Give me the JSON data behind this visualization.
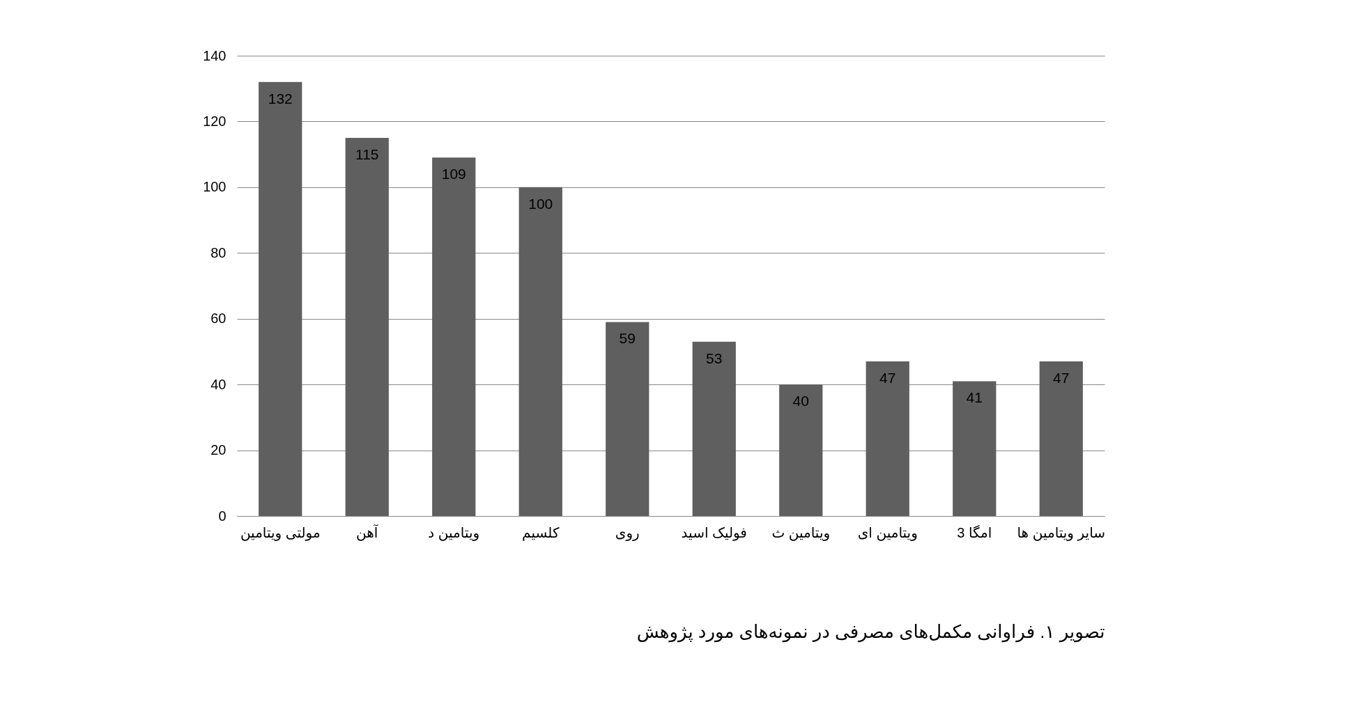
{
  "chart_data": {
    "type": "bar",
    "categories": [
      "مولتی ویتامین",
      "آهن",
      "ویتامین د",
      "کلسیم",
      "روی",
      "فولیک اسید",
      "ویتامین ث",
      "ویتامین ای",
      "امگا 3",
      "سایر ویتامین ها"
    ],
    "values": [
      132,
      115,
      109,
      100,
      59,
      53,
      40,
      47,
      41,
      47
    ],
    "color": "#5f5f5f",
    "ylim": [
      0,
      140
    ],
    "yticks": [
      0,
      20,
      40,
      60,
      80,
      100,
      120,
      140
    ],
    "grid": "y",
    "data_labels": true,
    "annotations": [
      "تصویر ۱. فراوانی مکمل‌های مصرفی در نمونه‌های مورد پژوهش"
    ]
  }
}
